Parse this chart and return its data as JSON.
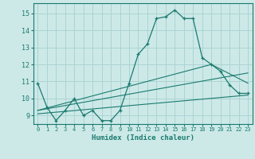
{
  "xlabel": "Humidex (Indice chaleur)",
  "xlim": [
    -0.5,
    23.5
  ],
  "ylim": [
    8.5,
    15.6
  ],
  "yticks": [
    9,
    10,
    11,
    12,
    13,
    14,
    15
  ],
  "xticks": [
    0,
    1,
    2,
    3,
    4,
    5,
    6,
    7,
    8,
    9,
    10,
    11,
    12,
    13,
    14,
    15,
    16,
    17,
    18,
    19,
    20,
    21,
    22,
    23
  ],
  "bg_color": "#cce9e8",
  "grid_color": "#aad4d2",
  "line_color": "#1a7a6e",
  "line1_x": [
    0,
    1,
    2,
    3,
    4,
    5,
    6,
    7,
    8,
    9,
    10,
    11,
    12,
    13,
    14,
    15,
    16,
    17,
    18,
    19,
    20,
    21,
    22,
    23
  ],
  "line1_y": [
    10.9,
    9.5,
    8.7,
    9.3,
    10.0,
    9.0,
    9.3,
    8.7,
    8.7,
    9.3,
    10.9,
    12.6,
    13.2,
    14.7,
    14.8,
    15.2,
    14.7,
    14.7,
    12.4,
    12.0,
    11.6,
    10.8,
    10.3,
    10.3
  ],
  "line2_x": [
    0,
    23
  ],
  "line2_y": [
    9.1,
    10.2
  ],
  "line3_x": [
    0,
    23
  ],
  "line3_y": [
    9.3,
    11.5
  ],
  "line4_x": [
    0,
    19,
    23
  ],
  "line4_y": [
    9.3,
    12.0,
    10.9
  ]
}
